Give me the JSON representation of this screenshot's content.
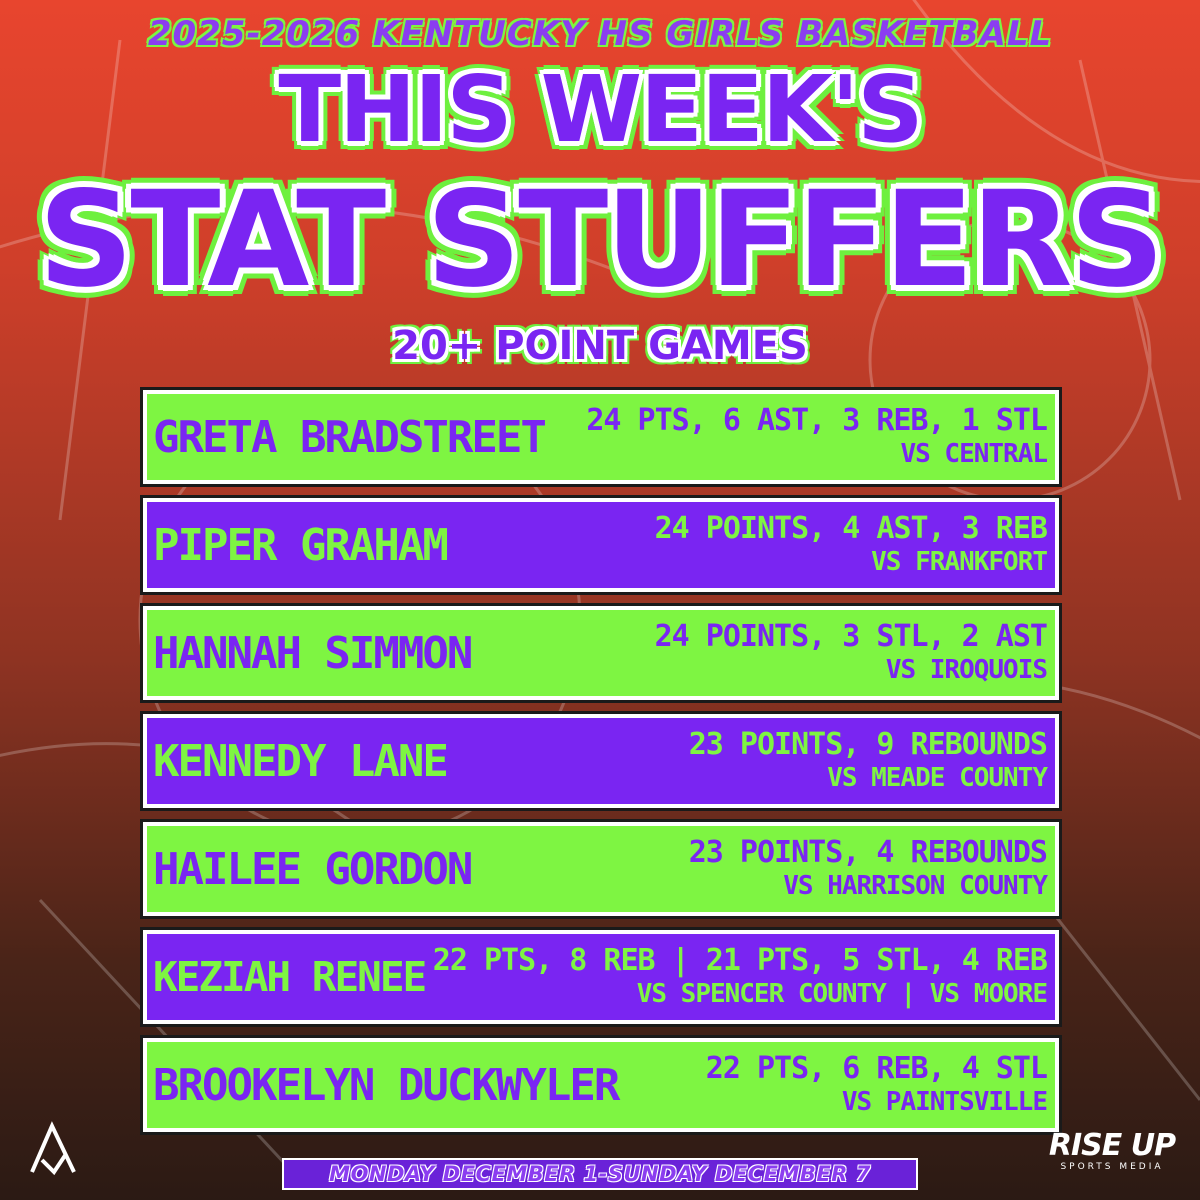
{
  "header": {
    "season": "2025-2026 KENTUCKY HS GIRLS BASKETBALL",
    "title_line1": "THIS WEEK'S",
    "title_line2": "STAT STUFFERS",
    "subtitle": "20+ POINT GAMES"
  },
  "colors": {
    "purple": "#7a25f2",
    "green": "#7ef542",
    "white": "#ffffff"
  },
  "players": [
    {
      "name": "GRETA BRADSTREET",
      "stats": "24 PTS, 6 AST, 3 REB, 1 STL",
      "opponent": "VS CENTRAL",
      "style": "green"
    },
    {
      "name": "PIPER GRAHAM",
      "stats": "24 POINTS, 4 AST, 3 REB",
      "opponent": "VS FRANKFORT",
      "style": "purple"
    },
    {
      "name": "HANNAH SIMMON",
      "stats": "24 POINTS, 3 STL, 2 AST",
      "opponent": "VS IROQUOIS",
      "style": "green"
    },
    {
      "name": "KENNEDY LANE",
      "stats": "23 POINTS, 9 REBOUNDS",
      "opponent": "VS MEADE COUNTY",
      "style": "purple"
    },
    {
      "name": "HAILEE GORDON",
      "stats": "23 POINTS, 4 REBOUNDS",
      "opponent": "VS HARRISON COUNTY",
      "style": "green"
    },
    {
      "name": "KEZIAH RENEE",
      "stats": "22 PTS, 8 REB | 21 PTS, 5 STL, 4 REB",
      "opponent": "VS SPENCER COUNTY | VS MOORE",
      "style": "purple"
    },
    {
      "name": "BROOKELYN DUCKWYLER",
      "stats": "22 PTS, 6 REB, 4 STL",
      "opponent": "VS PAINTSVILLE",
      "style": "green"
    }
  ],
  "footer": {
    "dates": "MONDAY DECEMBER 1-SUNDAY DECEMBER 7",
    "brand_main": "RISE UP",
    "brand_sub": "SPORTS MEDIA",
    "left_logo_icon": "a-monogram-icon"
  }
}
